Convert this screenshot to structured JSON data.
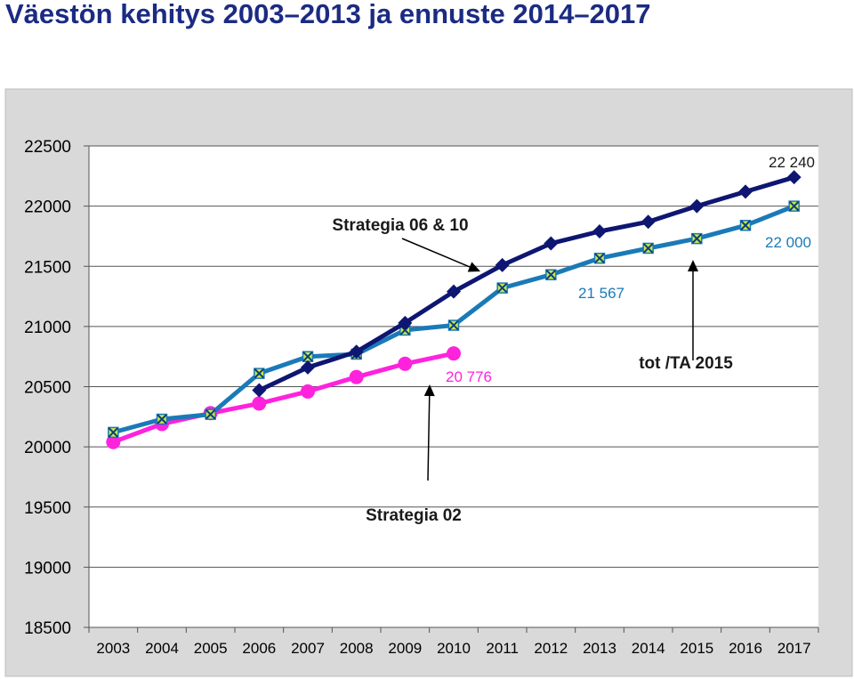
{
  "title": "Väestön kehitys 2003–2013 ja ennuste 2014–2017",
  "chart_data": {
    "type": "line",
    "title": "Väestön kehitys 2003–2013 ja ennuste 2014–2017",
    "xlabel": "",
    "ylabel": "",
    "x": [
      2003,
      2004,
      2005,
      2006,
      2007,
      2008,
      2009,
      2010,
      2011,
      2012,
      2013,
      2014,
      2015,
      2016,
      2017
    ],
    "ylim": [
      18500,
      22500
    ],
    "yticks": [
      18500,
      19000,
      19500,
      20000,
      20500,
      21000,
      21500,
      22000,
      22500
    ],
    "grid": true,
    "legend": "none",
    "series": [
      {
        "key": "actual",
        "color": "#1a7ab8",
        "marker": "x-square",
        "values": [
          20120,
          20230,
          20270,
          20610,
          20750,
          20770,
          20970,
          21010,
          21320,
          21430,
          21567,
          21650,
          21730,
          21840,
          22000
        ]
      },
      {
        "key": "strategia_06_10",
        "color": "#0e1672",
        "marker": "diamond",
        "values": [
          null,
          null,
          null,
          20470,
          20660,
          20790,
          21030,
          21290,
          21510,
          21690,
          21790,
          21870,
          22000,
          22120,
          22240
        ]
      },
      {
        "key": "strategia_02",
        "color": "#ff22dd",
        "marker": "circle",
        "values": [
          20040,
          20190,
          20280,
          20360,
          20460,
          20580,
          20690,
          20776,
          null,
          null,
          null,
          null,
          null,
          null,
          null
        ]
      }
    ],
    "data_labels": [
      {
        "text": "22 240",
        "color": "#1a1a1a"
      },
      {
        "text": "22 000",
        "color": "#1a7ab8"
      },
      {
        "text": "21 567",
        "color": "#1a7ab8"
      },
      {
        "text": "20 776",
        "color": "#ff22dd"
      }
    ],
    "annotations": [
      {
        "text": "Strategia 06 & 10"
      },
      {
        "text": "tot /TA 2015"
      },
      {
        "text": "Strategia 02"
      }
    ]
  }
}
